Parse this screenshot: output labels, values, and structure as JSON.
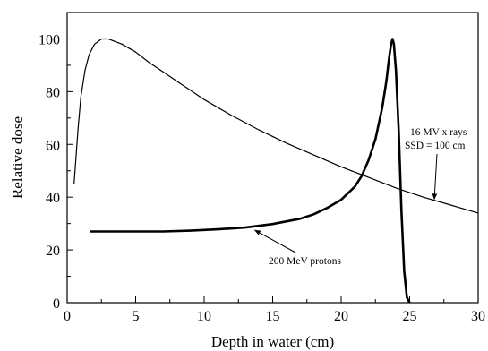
{
  "chart_data": {
    "type": "line",
    "title": "",
    "xlabel": "Depth in water (cm)",
    "ylabel": "Relative dose",
    "xlim": [
      0,
      30
    ],
    "ylim": [
      0,
      110
    ],
    "x_ticks": [
      0,
      5,
      10,
      15,
      20,
      25,
      30
    ],
    "y_ticks": [
      0,
      20,
      40,
      60,
      80,
      100
    ],
    "grid": false,
    "legend": "none",
    "series": [
      {
        "name": "16 MV x rays SSD = 100 cm",
        "color": "#000000",
        "x": [
          0.5,
          0.8,
          1.0,
          1.3,
          1.6,
          2.0,
          2.5,
          3.0,
          3.5,
          4.0,
          5.0,
          6.0,
          7.0,
          8.0,
          9.0,
          10.0,
          12.0,
          14.0,
          16.0,
          18.0,
          20.0,
          22.0,
          24.0,
          26.0,
          28.0,
          30.0
        ],
        "y": [
          45,
          66,
          78,
          88,
          94,
          98,
          100,
          100,
          99,
          98,
          95,
          91,
          87.5,
          84,
          80.5,
          77,
          71,
          65.5,
          60.5,
          56,
          51.5,
          47.5,
          43.5,
          40,
          37,
          34
        ]
      },
      {
        "name": "200 MeV protons",
        "color": "#000000",
        "x": [
          1.7,
          3,
          5,
          7,
          9,
          11,
          13,
          15,
          17,
          18,
          19,
          20,
          21,
          21.5,
          22,
          22.5,
          23,
          23.3,
          23.5,
          23.65,
          23.75,
          23.85,
          24.0,
          24.2,
          24.4,
          24.6,
          24.8,
          25.0
        ],
        "y": [
          27,
          27,
          27,
          27,
          27.3,
          27.8,
          28.5,
          29.8,
          31.8,
          33.5,
          36,
          39,
          44,
          48,
          54,
          62,
          74,
          84,
          93,
          98,
          100,
          98,
          88,
          65,
          35,
          12,
          2,
          0
        ]
      }
    ],
    "annotations": [
      {
        "id": "xray",
        "lines": [
          "16 MV x rays",
          "SSD = 100 cm"
        ],
        "arrow_to": [
          26.8,
          38.5
        ]
      },
      {
        "id": "proton",
        "lines": [
          "200 MeV protons"
        ],
        "arrow_to": [
          13.5,
          28.5
        ]
      }
    ]
  }
}
